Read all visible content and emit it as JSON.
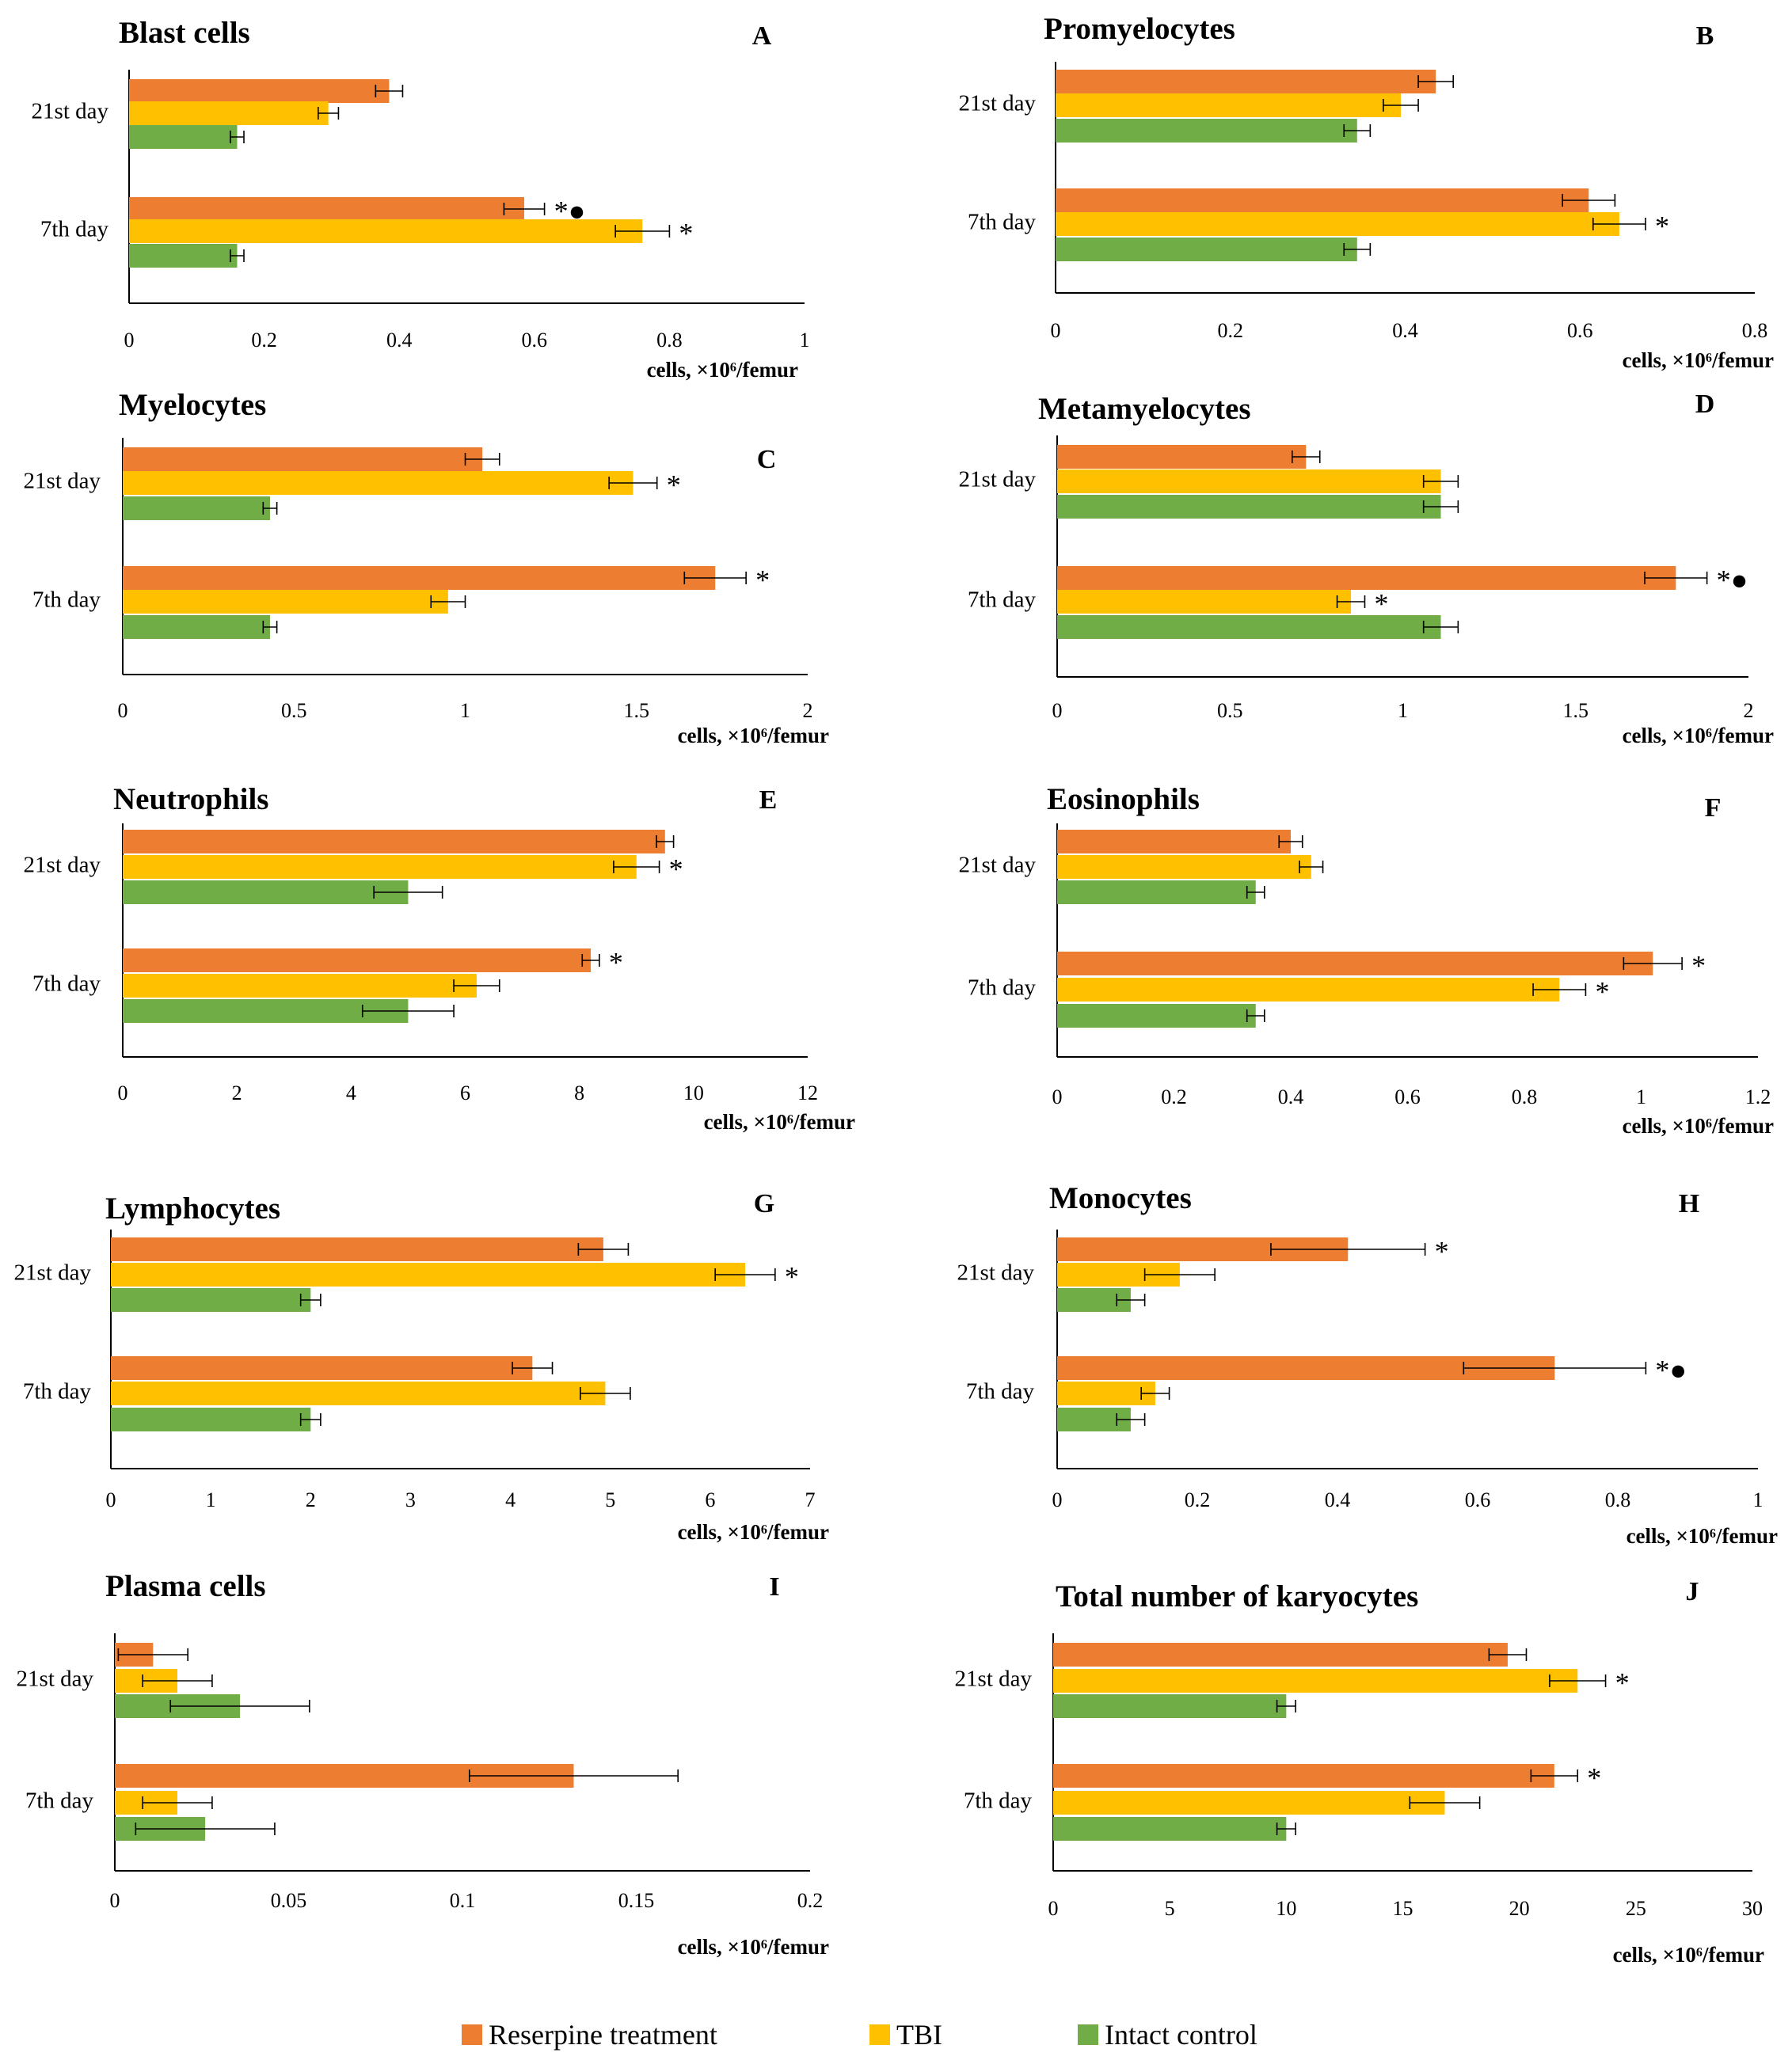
{
  "legend": {
    "items": [
      {
        "label": "Reserpine treatment",
        "color": "#ed7d31"
      },
      {
        "label": "TBI",
        "color": "#ffc000"
      },
      {
        "label": "Intact control",
        "color": "#70ad47"
      }
    ]
  },
  "chart_data": [
    {
      "type": "bar",
      "orientation": "horizontal",
      "title": "Blast cells",
      "panel": "A",
      "xlabel": "cells, ×10⁶/femur",
      "xlim": [
        0,
        1
      ],
      "xticks": [
        "0",
        "0.2",
        "0.4",
        "0.6",
        "0.8",
        "1"
      ],
      "categories": [
        "21st day",
        "7th day"
      ],
      "series": [
        {
          "name": "Reserpine treatment",
          "values": [
            0.385,
            0.585
          ],
          "errors": [
            0.02,
            0.03
          ],
          "marks": [
            "",
            "*●"
          ]
        },
        {
          "name": "TBI",
          "values": [
            0.295,
            0.76
          ],
          "errors": [
            0.015,
            0.04
          ],
          "marks": [
            "",
            "*"
          ]
        },
        {
          "name": "Intact control",
          "values": [
            0.16,
            0.16
          ],
          "errors": [
            0.01,
            0.01
          ],
          "marks": [
            "",
            ""
          ]
        }
      ]
    },
    {
      "type": "bar",
      "orientation": "horizontal",
      "title": "Promyelocytes",
      "panel": "B",
      "xlabel": "cells, ×10⁶/femur",
      "xlim": [
        0,
        0.8
      ],
      "xticks": [
        "0",
        "0.2",
        "0.4",
        "0.6",
        "0.8"
      ],
      "categories": [
        "21st day",
        "7th day"
      ],
      "series": [
        {
          "name": "Reserpine treatment",
          "values": [
            0.435,
            0.61
          ],
          "errors": [
            0.02,
            0.03
          ],
          "marks": [
            "",
            ""
          ]
        },
        {
          "name": "TBI",
          "values": [
            0.395,
            0.645
          ],
          "errors": [
            0.02,
            0.03
          ],
          "marks": [
            "",
            "*"
          ]
        },
        {
          "name": "Intact control",
          "values": [
            0.345,
            0.345
          ],
          "errors": [
            0.015,
            0.015
          ],
          "marks": [
            "",
            ""
          ]
        }
      ]
    },
    {
      "type": "bar",
      "orientation": "horizontal",
      "title": "Myelocytes",
      "panel": "C",
      "xlabel": "cells, ×10⁶/femur",
      "xlim": [
        0,
        2
      ],
      "xticks": [
        "0",
        "0.5",
        "1",
        "1.5",
        "2"
      ],
      "categories": [
        "21st day",
        "7th day"
      ],
      "series": [
        {
          "name": "Reserpine treatment",
          "values": [
            1.05,
            1.73
          ],
          "errors": [
            0.05,
            0.09
          ],
          "marks": [
            "",
            "*"
          ]
        },
        {
          "name": "TBI",
          "values": [
            1.49,
            0.95
          ],
          "errors": [
            0.07,
            0.05
          ],
          "marks": [
            "*",
            ""
          ]
        },
        {
          "name": "Intact control",
          "values": [
            0.43,
            0.43
          ],
          "errors": [
            0.02,
            0.02
          ],
          "marks": [
            "",
            ""
          ]
        }
      ]
    },
    {
      "type": "bar",
      "orientation": "horizontal",
      "title": "Metamyelocytes",
      "panel": "D",
      "xlabel": "cells, ×10⁶/femur",
      "xlim": [
        0,
        2
      ],
      "xticks": [
        "0",
        "0.5",
        "1",
        "1.5",
        "2"
      ],
      "categories": [
        "21st day",
        "7th day"
      ],
      "series": [
        {
          "name": "Reserpine treatment",
          "values": [
            0.72,
            1.79
          ],
          "errors": [
            0.04,
            0.09
          ],
          "marks": [
            "",
            "*●"
          ]
        },
        {
          "name": "TBI",
          "values": [
            1.11,
            0.85
          ],
          "errors": [
            0.05,
            0.04
          ],
          "marks": [
            "",
            "*"
          ]
        },
        {
          "name": "Intact control",
          "values": [
            1.11,
            1.11
          ],
          "errors": [
            0.05,
            0.05
          ],
          "marks": [
            "",
            ""
          ]
        }
      ]
    },
    {
      "type": "bar",
      "orientation": "horizontal",
      "title": "Neutrophils",
      "panel": "E",
      "xlabel": "cells, ×10⁶/femur",
      "xlim": [
        0,
        12
      ],
      "xticks": [
        "0",
        "2",
        "4",
        "6",
        "8",
        "10",
        "12"
      ],
      "categories": [
        "21st day",
        "7th day"
      ],
      "series": [
        {
          "name": "Reserpine treatment",
          "values": [
            9.5,
            8.2
          ],
          "errors": [
            0.15,
            0.15
          ],
          "marks": [
            "",
            "*"
          ]
        },
        {
          "name": "TBI",
          "values": [
            9.0,
            6.2
          ],
          "errors": [
            0.4,
            0.4
          ],
          "marks": [
            "*",
            ""
          ]
        },
        {
          "name": "Intact control",
          "values": [
            5.0,
            5.0
          ],
          "errors": [
            0.6,
            0.8
          ],
          "marks": [
            "",
            ""
          ]
        }
      ]
    },
    {
      "type": "bar",
      "orientation": "horizontal",
      "title": "Eosinophils",
      "panel": "F",
      "xlabel": "cells, ×10⁶/femur",
      "xlim": [
        0,
        1.2
      ],
      "xticks": [
        "0",
        "0.2",
        "0.4",
        "0.6",
        "0.8",
        "1",
        "1.2"
      ],
      "categories": [
        "21st day",
        "7th day"
      ],
      "series": [
        {
          "name": "Reserpine treatment",
          "values": [
            0.4,
            1.02
          ],
          "errors": [
            0.02,
            0.05
          ],
          "marks": [
            "",
            "*"
          ]
        },
        {
          "name": "TBI",
          "values": [
            0.435,
            0.86
          ],
          "errors": [
            0.02,
            0.045
          ],
          "marks": [
            "",
            "*"
          ]
        },
        {
          "name": "Intact control",
          "values": [
            0.34,
            0.34
          ],
          "errors": [
            0.015,
            0.015
          ],
          "marks": [
            "",
            ""
          ]
        }
      ]
    },
    {
      "type": "bar",
      "orientation": "horizontal",
      "title": "Lymphocytes",
      "panel": "G",
      "xlabel": "cells, ×10⁶/femur",
      "xlim": [
        0,
        7
      ],
      "xticks": [
        "0",
        "1",
        "2",
        "3",
        "4",
        "5",
        "6",
        "7"
      ],
      "categories": [
        "21st day",
        "7th day"
      ],
      "series": [
        {
          "name": "Reserpine treatment",
          "values": [
            4.93,
            4.22
          ],
          "errors": [
            0.25,
            0.2
          ],
          "marks": [
            "",
            ""
          ]
        },
        {
          "name": "TBI",
          "values": [
            6.35,
            4.95
          ],
          "errors": [
            0.3,
            0.25
          ],
          "marks": [
            "*",
            ""
          ]
        },
        {
          "name": "Intact control",
          "values": [
            2.0,
            2.0
          ],
          "errors": [
            0.1,
            0.1
          ],
          "marks": [
            "",
            ""
          ]
        }
      ]
    },
    {
      "type": "bar",
      "orientation": "horizontal",
      "title": "Monocytes",
      "panel": "H",
      "xlabel": "cells, ×10⁶/femur",
      "xlim": [
        0,
        1
      ],
      "xticks": [
        "0",
        "0.2",
        "0.4",
        "0.6",
        "0.8",
        "1"
      ],
      "categories": [
        "21st day",
        "7th day"
      ],
      "series": [
        {
          "name": "Reserpine treatment",
          "values": [
            0.415,
            0.71
          ],
          "errors": [
            0.11,
            0.13
          ],
          "marks": [
            "*",
            "*●"
          ]
        },
        {
          "name": "TBI",
          "values": [
            0.175,
            0.14
          ],
          "errors": [
            0.05,
            0.02
          ],
          "marks": [
            "",
            ""
          ]
        },
        {
          "name": "Intact control",
          "values": [
            0.105,
            0.105
          ],
          "errors": [
            0.02,
            0.02
          ],
          "marks": [
            "",
            ""
          ]
        }
      ]
    },
    {
      "type": "bar",
      "orientation": "horizontal",
      "title": "Plasma cells",
      "panel": "I",
      "xlabel": "cells, ×10⁶/femur",
      "xlim": [
        0,
        0.2
      ],
      "xticks": [
        "0",
        "0.05",
        "0.1",
        "0.15",
        "0.2"
      ],
      "categories": [
        "21st day",
        "7th day"
      ],
      "series": [
        {
          "name": "Reserpine treatment",
          "values": [
            0.011,
            0.132
          ],
          "errors": [
            0.01,
            0.03
          ],
          "marks": [
            "",
            ""
          ]
        },
        {
          "name": "TBI",
          "values": [
            0.018,
            0.018
          ],
          "errors": [
            0.01,
            0.01
          ],
          "marks": [
            "",
            ""
          ]
        },
        {
          "name": "Intact control",
          "values": [
            0.036,
            0.026
          ],
          "errors": [
            0.02,
            0.02
          ],
          "marks": [
            "",
            ""
          ]
        }
      ]
    },
    {
      "type": "bar",
      "orientation": "horizontal",
      "title": "Total number of karyocytes",
      "panel": "J",
      "xlabel": "cells, ×10⁶/femur",
      "xlim": [
        0,
        30
      ],
      "xticks": [
        "0",
        "5",
        "10",
        "15",
        "20",
        "25",
        "30"
      ],
      "categories": [
        "21st day",
        "7th day"
      ],
      "series": [
        {
          "name": "Reserpine treatment",
          "values": [
            19.5,
            21.5
          ],
          "errors": [
            0.8,
            1.0
          ],
          "marks": [
            "",
            "*"
          ]
        },
        {
          "name": "TBI",
          "values": [
            22.5,
            16.8
          ],
          "errors": [
            1.2,
            1.5
          ],
          "marks": [
            "*",
            ""
          ]
        },
        {
          "name": "Intact control",
          "values": [
            10.0,
            10.0
          ],
          "errors": [
            0.4,
            0.4
          ],
          "marks": [
            "",
            ""
          ]
        }
      ]
    }
  ]
}
